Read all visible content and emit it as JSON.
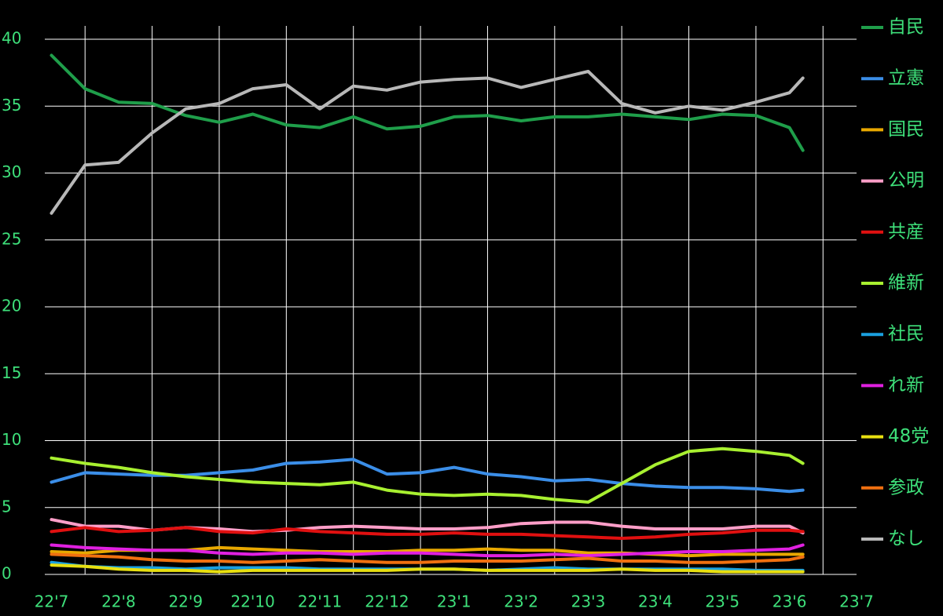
{
  "chart_data": {
    "type": "line",
    "x": [
      0,
      0.5,
      1,
      1.5,
      2,
      2.5,
      3,
      3.5,
      4,
      4.5,
      5,
      5.5,
      6,
      6.5,
      7,
      7.5,
      8,
      8.5,
      9,
      9.5,
      10,
      10.5,
      11,
      11.2
    ],
    "xlim": [
      -0.1,
      12
    ],
    "xticks": [
      {
        "value": 0,
        "label": "22'7"
      },
      {
        "value": 1,
        "label": "22'8"
      },
      {
        "value": 2,
        "label": "22'9"
      },
      {
        "value": 3,
        "label": "22'10"
      },
      {
        "value": 4,
        "label": "22'11"
      },
      {
        "value": 5,
        "label": "22'12"
      },
      {
        "value": 6,
        "label": "23'1"
      },
      {
        "value": 7,
        "label": "23'2"
      },
      {
        "value": 8,
        "label": "23'3"
      },
      {
        "value": 9,
        "label": "23'4"
      },
      {
        "value": 10,
        "label": "23'5"
      },
      {
        "value": 11,
        "label": "23'6"
      },
      {
        "value": 12,
        "label": "23'7"
      }
    ],
    "xgrid": [
      0.5,
      1.5,
      2.5,
      3.5,
      4.5,
      5.5,
      6.5,
      7.5,
      8.5,
      9.5,
      10.5,
      11.5
    ],
    "ylim": [
      0,
      41
    ],
    "yticks": [
      0,
      5,
      10,
      15,
      20,
      25,
      30,
      35,
      40
    ],
    "grid": true,
    "legend": "right",
    "series": [
      {
        "name": "自民",
        "color": "#1f9e4a",
        "values": [
          38.8,
          36.3,
          35.3,
          35.2,
          34.3,
          33.8,
          34.4,
          33.6,
          33.4,
          34.2,
          33.3,
          33.5,
          34.2,
          34.3,
          33.9,
          34.2,
          34.2,
          34.4,
          34.2,
          34.0,
          34.4,
          34.3,
          33.4,
          31.7
        ]
      },
      {
        "name": "立憲",
        "color": "#3b8ee8",
        "values": [
          6.9,
          7.6,
          7.5,
          7.4,
          7.4,
          7.6,
          7.8,
          8.3,
          8.4,
          8.6,
          7.5,
          7.6,
          8.0,
          7.5,
          7.3,
          7.0,
          7.1,
          6.8,
          6.6,
          6.5,
          6.5,
          6.4,
          6.2,
          6.3
        ]
      },
      {
        "name": "国民",
        "color": "#e8a800",
        "values": [
          1.7,
          1.6,
          1.8,
          1.8,
          1.8,
          2.0,
          1.9,
          1.8,
          1.7,
          1.7,
          1.7,
          1.8,
          1.8,
          1.9,
          1.8,
          1.8,
          1.6,
          1.6,
          1.5,
          1.4,
          1.5,
          1.5,
          1.5,
          1.5
        ]
      },
      {
        "name": "公明",
        "color": "#ff9ec8",
        "values": [
          4.1,
          3.6,
          3.6,
          3.3,
          3.5,
          3.4,
          3.2,
          3.3,
          3.5,
          3.6,
          3.5,
          3.4,
          3.4,
          3.5,
          3.8,
          3.9,
          3.9,
          3.6,
          3.4,
          3.4,
          3.4,
          3.6,
          3.6,
          3.1
        ]
      },
      {
        "name": "共産",
        "color": "#e01010",
        "values": [
          3.2,
          3.5,
          3.2,
          3.3,
          3.5,
          3.2,
          3.1,
          3.4,
          3.2,
          3.1,
          3.0,
          3.0,
          3.1,
          3.0,
          3.0,
          2.9,
          2.8,
          2.7,
          2.8,
          3.0,
          3.1,
          3.3,
          3.3,
          3.2
        ]
      },
      {
        "name": "維新",
        "color": "#a8f030",
        "values": [
          8.7,
          8.3,
          8.0,
          7.6,
          7.3,
          7.1,
          6.9,
          6.8,
          6.7,
          6.9,
          6.3,
          6.0,
          5.9,
          6.0,
          5.9,
          5.6,
          5.4,
          6.8,
          8.2,
          9.2,
          9.4,
          9.2,
          8.9,
          8.3
        ]
      },
      {
        "name": "社民",
        "color": "#1aa0e0",
        "values": [
          0.9,
          0.6,
          0.5,
          0.5,
          0.4,
          0.5,
          0.5,
          0.5,
          0.4,
          0.4,
          0.4,
          0.4,
          0.4,
          0.3,
          0.4,
          0.5,
          0.4,
          0.4,
          0.4,
          0.4,
          0.4,
          0.3,
          0.3,
          0.3
        ]
      },
      {
        "name": "れ新",
        "color": "#e020e0",
        "values": [
          2.2,
          2.0,
          1.9,
          1.8,
          1.8,
          1.6,
          1.5,
          1.6,
          1.6,
          1.5,
          1.6,
          1.6,
          1.5,
          1.4,
          1.4,
          1.5,
          1.4,
          1.5,
          1.6,
          1.7,
          1.7,
          1.8,
          1.9,
          2.2
        ]
      },
      {
        "name": "48党",
        "color": "#e8e010",
        "values": [
          0.7,
          0.6,
          0.4,
          0.3,
          0.3,
          0.2,
          0.3,
          0.3,
          0.3,
          0.3,
          0.3,
          0.4,
          0.4,
          0.3,
          0.3,
          0.3,
          0.3,
          0.4,
          0.3,
          0.3,
          0.2,
          0.2,
          0.2,
          0.2
        ]
      },
      {
        "name": "参政",
        "color": "#f07010",
        "values": [
          1.5,
          1.4,
          1.3,
          1.1,
          1.0,
          1.0,
          0.9,
          1.0,
          1.1,
          1.0,
          0.9,
          0.9,
          1.0,
          1.0,
          1.0,
          1.1,
          1.2,
          1.0,
          1.0,
          0.9,
          0.9,
          1.0,
          1.1,
          1.3
        ]
      },
      {
        "name": "なし",
        "color": "#b8b8b8",
        "values": [
          27.0,
          30.6,
          30.8,
          33.0,
          34.8,
          35.2,
          36.3,
          36.6,
          34.8,
          36.5,
          36.2,
          36.8,
          37.0,
          37.1,
          36.4,
          37.0,
          37.6,
          35.2,
          34.5,
          35.0,
          34.7,
          35.3,
          36.0,
          37.1
        ]
      }
    ]
  }
}
